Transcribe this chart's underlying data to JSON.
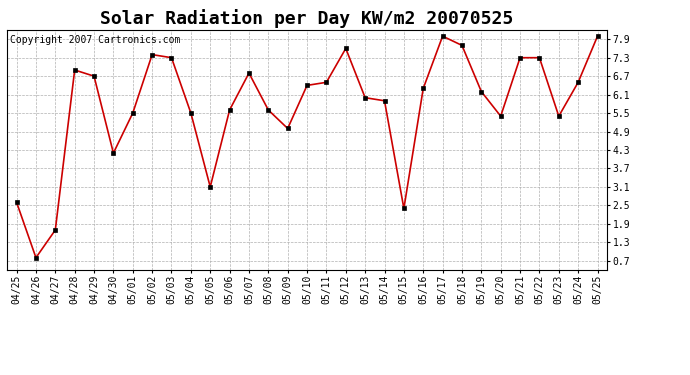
{
  "title": "Solar Radiation per Day KW/m2 20070525",
  "copyright": "Copyright 2007 Cartronics.com",
  "labels": [
    "04/25",
    "04/26",
    "04/27",
    "04/28",
    "04/29",
    "04/30",
    "05/01",
    "05/02",
    "05/03",
    "05/04",
    "05/05",
    "05/06",
    "05/07",
    "05/08",
    "05/09",
    "05/10",
    "05/11",
    "05/12",
    "05/13",
    "05/14",
    "05/15",
    "05/16",
    "05/17",
    "05/18",
    "05/19",
    "05/20",
    "05/21",
    "05/22",
    "05/23",
    "05/24",
    "05/25"
  ],
  "values": [
    2.6,
    0.8,
    1.7,
    6.9,
    6.7,
    4.2,
    5.5,
    7.4,
    7.3,
    5.5,
    3.1,
    5.6,
    6.8,
    5.6,
    5.0,
    6.4,
    6.5,
    7.6,
    6.0,
    5.9,
    2.4,
    6.3,
    8.0,
    7.7,
    6.2,
    5.4,
    7.3,
    7.3,
    5.4,
    6.5,
    8.0
  ],
  "line_color": "#cc0000",
  "marker_color": "#000000",
  "bg_color": "#ffffff",
  "plot_bg_color": "#ffffff",
  "grid_color": "#b0b0b0",
  "yticks": [
    0.7,
    1.3,
    1.9,
    2.5,
    3.1,
    3.7,
    4.3,
    4.9,
    5.5,
    6.1,
    6.7,
    7.3,
    7.9
  ],
  "ylim": [
    0.4,
    8.2
  ],
  "title_fontsize": 13,
  "tick_fontsize": 7,
  "copyright_fontsize": 7
}
